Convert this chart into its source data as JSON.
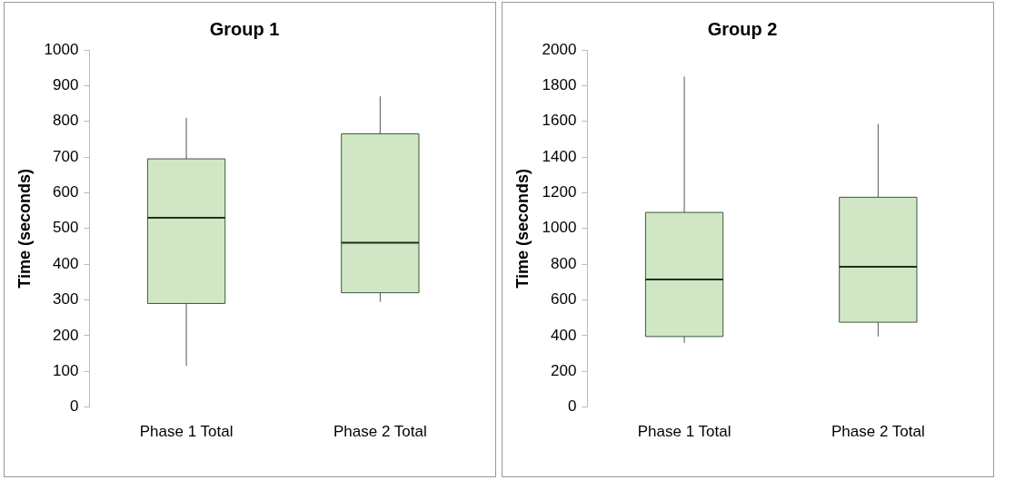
{
  "chart_data": [
    {
      "type": "box",
      "title": "Group 1",
      "ylabel": "Time (seconds)",
      "categories": [
        "Phase 1 Total",
        "Phase 2 Total"
      ],
      "color": "#d0e6c4",
      "grid": false,
      "ylim": [
        0,
        1000
      ],
      "yticks": [
        0,
        100,
        200,
        300,
        400,
        500,
        600,
        700,
        800,
        900,
        1000
      ],
      "boxes": [
        {
          "low": 115,
          "q1": 290,
          "median": 530,
          "q3": 695,
          "high": 810
        },
        {
          "low": 295,
          "q1": 320,
          "median": 460,
          "q3": 765,
          "high": 870
        }
      ]
    },
    {
      "type": "box",
      "title": "Group 2",
      "ylabel": "Time (seconds)",
      "categories": [
        "Phase 1 Total",
        "Phase 2 Total"
      ],
      "color": "#d0e6c4",
      "grid": false,
      "ylim": [
        0,
        2000
      ],
      "yticks": [
        0,
        200,
        400,
        600,
        800,
        1000,
        1200,
        1400,
        1600,
        1800,
        2000
      ],
      "boxes": [
        {
          "low": 360,
          "q1": 395,
          "median": 715,
          "q3": 1090,
          "high": 1850
        },
        {
          "low": 395,
          "q1": 475,
          "median": 785,
          "q3": 1175,
          "high": 1585
        }
      ]
    }
  ]
}
